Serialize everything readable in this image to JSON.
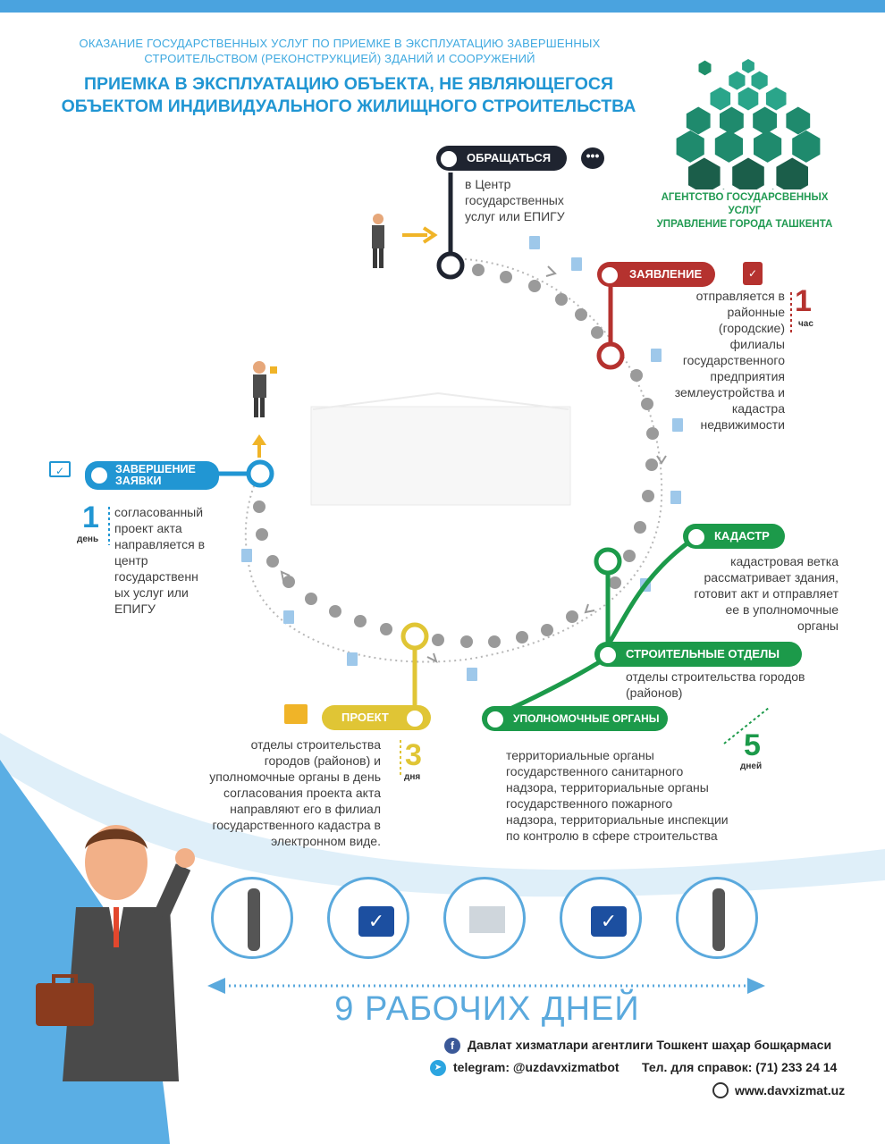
{
  "header": {
    "subtitle_line1": "ОКАЗАНИЕ ГОСУДАРСТВЕННЫХ УСЛУГ ПО ПРИЕМКЕ В ЭКСПЛУАТАЦИЮ ЗАВЕРШЕННЫХ",
    "subtitle_line2": "СТРОИТЕЛЬСТВОМ (РЕКОНСТРУКЦИЕЙ) ЗДАНИЙ И СООРУЖЕНИЙ",
    "title_line1": "ПРИЕМКА В ЭКСПЛУАТАЦИЮ ОБЪЕКТА, НЕ ЯВЛЯЮЩЕГОСЯ",
    "title_line2": "ОБЪЕКТОМ ИНДИВИДУАЛЬНОГО ЖИЛИЩНОГО СТРОИТЕЛЬСТВА",
    "agency_line1": "АГЕНТСТВО ГОСУДАРСВЕННЫХ УСЛУГ",
    "agency_line2": "УПРАВЛЕНИЕ ГОРОДА ТАШКЕНТА"
  },
  "steps": {
    "apply": {
      "label": "ОБРАЩАТЬСЯ",
      "desc": [
        "в Центр",
        "государственных",
        "услуг или ЕПИГУ"
      ]
    },
    "application": {
      "label": "ЗАЯВЛЕНИЕ",
      "desc": [
        "отправляется в",
        "районные",
        "(городские)",
        "филиалы",
        "государственного",
        "предприятия",
        "землеустройства и",
        "кадастра",
        "недвижимости"
      ],
      "time_num": "1",
      "time_unit": "час"
    },
    "cadastre": {
      "label": "КАДАСТР",
      "desc": [
        "кадастровая ветка",
        "рассматривает здания,",
        "готовит акт и отправляет",
        "ее в уполномочные",
        "органы"
      ]
    },
    "construction": {
      "label": "СТРОИТЕЛЬНЫЕ ОТДЕЛЫ",
      "desc": [
        "отделы строительства городов",
        "(районов)"
      ]
    },
    "authorized": {
      "label": "УПОЛНОМОЧНЫЕ ОРГАНЫ",
      "desc": [
        "территориальные органы",
        "государственного санитарного",
        "надзора, территориальные органы",
        "государственного пожарного",
        "надзора, территориальные инспекции",
        "по контролю в сфере строительства"
      ],
      "time_num": "5",
      "time_unit": "дней"
    },
    "project": {
      "label": "ПРОЕКТ",
      "desc": [
        "отделы строительства",
        "городов (районов) и",
        "уполномочные органы в день",
        "согласования проекта акта",
        "направляют его в филиал",
        "государственного кадастра в",
        "электронном виде."
      ],
      "time_num": "3",
      "time_unit": "дня"
    },
    "completion": {
      "label_line1": "ЗАВЕРШЕНИЕ",
      "label_line2": "ЗАЯВКИ",
      "desc": [
        "согласованный",
        "проект акта",
        "направляется в",
        "центр",
        "государственн",
        "ых услуг или",
        "ЕПИГУ"
      ],
      "time_num": "1",
      "time_unit": "день"
    }
  },
  "timeline": {
    "total": "9 РАБОЧИХ ДНЕЙ"
  },
  "footer": {
    "facebook": "Давлат хизматлари агентлиги Тошкент шаҳар бошқармаси",
    "telegram": "telegram: @uzdavxizmatbot",
    "phone": "Тел. для справок: (71) 233 24 14",
    "website": "www.davxizmat.uz"
  },
  "colors": {
    "apply": "#1f2430",
    "application": "#b5322f",
    "cadastre": "#1c9a4a",
    "project": "#e0c535",
    "completion": "#2196d3",
    "accent_blue": "#4aa3df"
  },
  "icons": [
    "chat-bubble-icon",
    "clipboard-check-icon",
    "laptop-check-icon",
    "presentation-icon",
    "facebook-icon",
    "telegram-icon",
    "globe-icon",
    "document-icon",
    "arrow-icon"
  ]
}
